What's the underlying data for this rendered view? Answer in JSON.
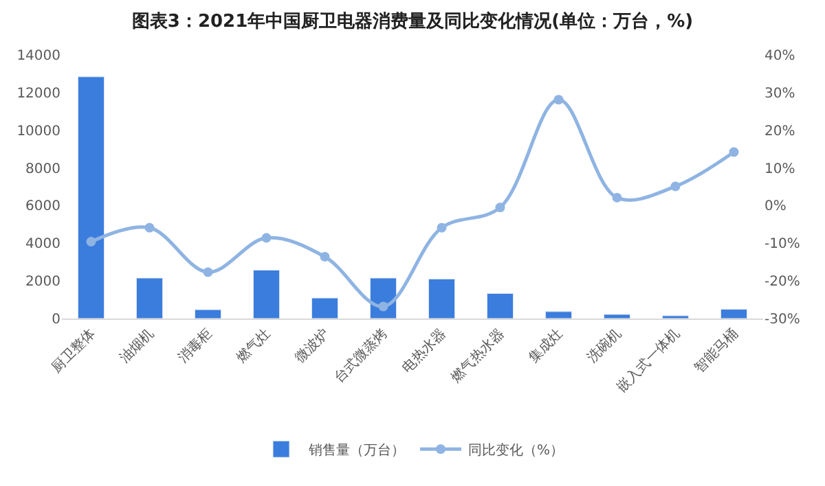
{
  "chart_data": {
    "type": "bar",
    "title": "图表3：2021年中国厨卫电器消费量及同比变化情况(单位：万台，%)",
    "categories": [
      "厨卫整体",
      "油烟机",
      "消毒柜",
      "燃气灶",
      "微波炉",
      "台式微蒸烤",
      "电热水器",
      "燃气热水器",
      "集成灶",
      "洗碗机",
      "嵌入式一体机",
      "智能马桶"
    ],
    "series": [
      {
        "name": "销售量（万台）",
        "color": "#3b7ddd",
        "values": [
          12840,
          2150,
          470,
          2570,
          1090,
          2150,
          2100,
          1330,
          370,
          220,
          150,
          490
        ]
      },
      {
        "name": "同比变化（%）",
        "type": "line",
        "axis": "y2",
        "color": "#8fb4e3",
        "values": [
          -9.6,
          -5.9,
          -17.7,
          -8.6,
          -13.6,
          -26.8,
          -5.9,
          -0.5,
          28.1,
          2.1,
          5.1,
          14.2
        ]
      }
    ],
    "ylim": [
      0,
      14000
    ],
    "yticks": [
      0,
      2000,
      4000,
      6000,
      8000,
      10000,
      12000,
      14000
    ],
    "y2lim": [
      -30,
      40
    ],
    "y2ticks": [
      {
        "value": -30,
        "label": "-30%"
      },
      {
        "value": -20,
        "label": "-20%"
      },
      {
        "value": -10,
        "label": "-10%"
      },
      {
        "value": 0,
        "label": "0%"
      },
      {
        "value": 10,
        "label": "10%"
      },
      {
        "value": 20,
        "label": "20%"
      },
      {
        "value": 30,
        "label": "30%"
      },
      {
        "value": 40,
        "label": "40%"
      }
    ],
    "legend": "bottom",
    "marker": "circle",
    "line_style": "solid"
  }
}
